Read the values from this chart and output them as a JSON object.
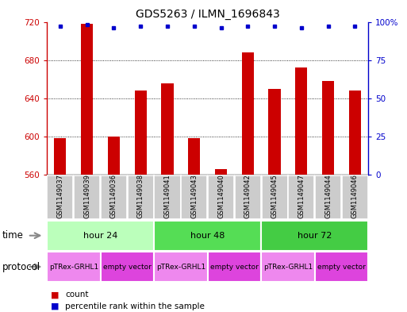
{
  "title": "GDS5263 / ILMN_1696843",
  "samples": [
    "GSM1149037",
    "GSM1149039",
    "GSM1149036",
    "GSM1149038",
    "GSM1149041",
    "GSM1149043",
    "GSM1149040",
    "GSM1149042",
    "GSM1149045",
    "GSM1149047",
    "GSM1149044",
    "GSM1149046"
  ],
  "counts": [
    598,
    718,
    600,
    648,
    656,
    598,
    566,
    688,
    650,
    672,
    658,
    648
  ],
  "percentiles": [
    97,
    98,
    96,
    97,
    97,
    97,
    96,
    97,
    97,
    96,
    97,
    97
  ],
  "ymin": 560,
  "ymax": 720,
  "yticks": [
    560,
    600,
    640,
    680,
    720
  ],
  "yright_ticks": [
    0,
    25,
    50,
    75,
    100
  ],
  "bar_color": "#cc0000",
  "dot_color": "#0000cc",
  "time_groups": [
    {
      "label": "hour 24",
      "start": 0,
      "end": 4,
      "color": "#bbffbb"
    },
    {
      "label": "hour 48",
      "start": 4,
      "end": 8,
      "color": "#55dd55"
    },
    {
      "label": "hour 72",
      "start": 8,
      "end": 12,
      "color": "#44cc44"
    }
  ],
  "protocol_groups": [
    {
      "label": "pTRex-GRHL1",
      "start": 0,
      "end": 2,
      "color": "#ee88ee"
    },
    {
      "label": "empty vector",
      "start": 2,
      "end": 4,
      "color": "#dd44dd"
    },
    {
      "label": "pTRex-GRHL1",
      "start": 4,
      "end": 6,
      "color": "#ee88ee"
    },
    {
      "label": "empty vector",
      "start": 6,
      "end": 8,
      "color": "#dd44dd"
    },
    {
      "label": "pTRex-GRHL1",
      "start": 8,
      "end": 10,
      "color": "#ee88ee"
    },
    {
      "label": "empty vector",
      "start": 10,
      "end": 12,
      "color": "#dd44dd"
    }
  ],
  "time_label": "time",
  "protocol_label": "protocol",
  "legend_count_label": "count",
  "legend_percentile_label": "percentile rank within the sample",
  "bg_color": "#ffffff",
  "title_fontsize": 10,
  "tick_fontsize": 7.5,
  "label_fontsize": 8.5,
  "sample_fontsize": 6,
  "group_fontsize": 8,
  "proto_fontsize": 6.5,
  "n_samples": 12,
  "box_color": "#cccccc",
  "arrow_color": "#888888"
}
